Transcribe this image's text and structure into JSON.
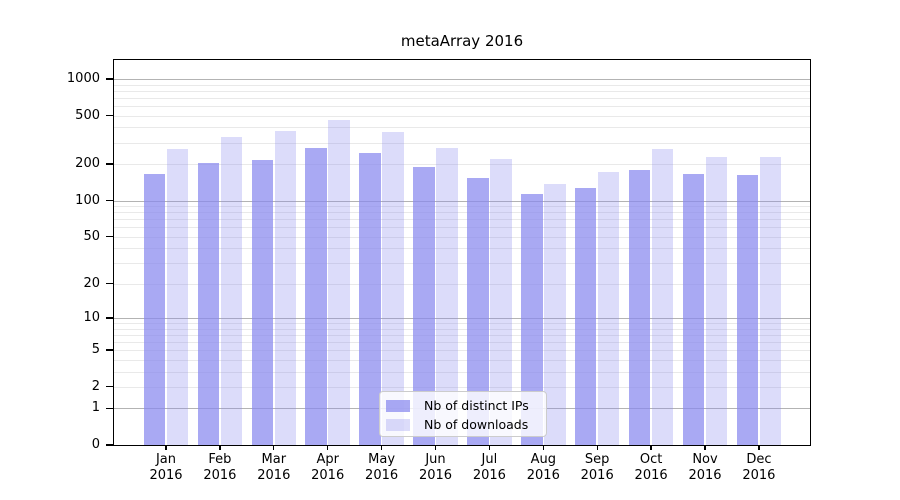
{
  "figure": {
    "background": "#ffffff"
  },
  "chart_data": {
    "type": "bar",
    "title": "metaArray 2016",
    "categories": [
      "Jan",
      "Feb",
      "Mar",
      "Apr",
      "May",
      "Jun",
      "Jul",
      "Aug",
      "Sep",
      "Oct",
      "Nov",
      "Dec"
    ],
    "year": "2016",
    "series": [
      {
        "name": "Nb of distinct IPs",
        "values": [
          165,
          205,
          215,
          273,
          246,
          188,
          153,
          113,
          127,
          180,
          165,
          164
        ],
        "color": "rgba(136,136,238,0.72)"
      },
      {
        "name": "Nb of downloads",
        "values": [
          266,
          336,
          372,
          460,
          365,
          271,
          220,
          137,
          173,
          266,
          229,
          229
        ],
        "color": "rgba(136,136,238,0.29)"
      }
    ],
    "xlabel": "",
    "ylabel": "",
    "y_scale": "log1p",
    "y_max": 1430,
    "y_ticks": [
      1000,
      500,
      200,
      100,
      50,
      20,
      10,
      5,
      2,
      1,
      0
    ],
    "grid": {
      "on": true,
      "major_values": [
        1,
        10,
        100,
        1000
      ],
      "minor_values": [
        2,
        3,
        4,
        5,
        6,
        7,
        8,
        9,
        20,
        30,
        40,
        50,
        60,
        70,
        80,
        90,
        200,
        300,
        400,
        500,
        600,
        700,
        800,
        900
      ],
      "major_color": "#b3b3b3",
      "minor_color": "#e9e9e9"
    },
    "legend": {
      "position": "lower-center"
    },
    "axis_color": "#000000",
    "tick_label_color": "#000000"
  }
}
